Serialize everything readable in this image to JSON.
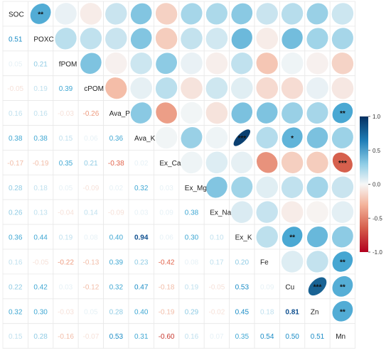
{
  "chart_data": {
    "type": "heatmap",
    "variables": [
      "SOC",
      "POXC",
      "fPOM",
      "cPOM",
      "Ava_P",
      "Ava_K",
      "Ex_Ca",
      "Ex_Mg",
      "Ex_Na",
      "Ex_K",
      "Fe",
      "Cu",
      "Zn",
      "Mn"
    ],
    "lower_values": [
      [
        0.51
      ],
      [
        0.05,
        0.21
      ],
      [
        -0.05,
        0.19,
        0.39
      ],
      [
        0.16,
        0.16,
        -0.03,
        -0.26
      ],
      [
        0.38,
        0.38,
        0.15,
        0.06,
        0.36
      ],
      [
        -0.17,
        -0.19,
        0.35,
        0.21,
        -0.38,
        0.02
      ],
      [
        0.28,
        0.18,
        0.05,
        -0.09,
        0.02,
        0.32,
        0.03
      ],
      [
        0.26,
        0.13,
        -0.04,
        0.14,
        -0.09,
        0.03,
        0.09,
        0.38
      ],
      [
        0.36,
        0.44,
        0.19,
        0.08,
        0.4,
        0.94,
        0.06,
        0.3,
        0.1
      ],
      [
        0.16,
        -0.05,
        -0.22,
        -0.13,
        0.39,
        0.23,
        -0.42,
        0.08,
        0.17,
        0.2
      ],
      [
        0.22,
        0.42,
        0.03,
        -0.12,
        0.32,
        0.47,
        -0.18,
        0.19,
        -0.05,
        0.53,
        0.09
      ],
      [
        0.32,
        0.3,
        -0.03,
        0.05,
        0.28,
        0.4,
        -0.19,
        0.29,
        -0.02,
        0.45,
        0.18,
        0.81
      ],
      [
        0.15,
        0.28,
        -0.16,
        -0.07,
        0.53,
        0.31,
        -0.6,
        0.16,
        0.07,
        0.35,
        0.54,
        0.5,
        0.51
      ]
    ],
    "upper_cells": [
      {
        "row": "SOC",
        "col": "POXC",
        "r": 0.51,
        "sig": "**"
      },
      {
        "row": "SOC",
        "col": "fPOM",
        "r": 0.05,
        "sig": ""
      },
      {
        "row": "SOC",
        "col": "cPOM",
        "r": -0.05,
        "sig": ""
      },
      {
        "row": "SOC",
        "col": "Ava_P",
        "r": 0.16,
        "sig": ""
      },
      {
        "row": "SOC",
        "col": "Ava_K",
        "r": 0.38,
        "sig": ""
      },
      {
        "row": "SOC",
        "col": "Ex_Ca",
        "r": -0.17,
        "sig": ""
      },
      {
        "row": "SOC",
        "col": "Ex_Mg",
        "r": 0.28,
        "sig": ""
      },
      {
        "row": "SOC",
        "col": "Ex_Na",
        "r": 0.26,
        "sig": ""
      },
      {
        "row": "SOC",
        "col": "Ex_K",
        "r": 0.36,
        "sig": ""
      },
      {
        "row": "SOC",
        "col": "Fe",
        "r": 0.16,
        "sig": ""
      },
      {
        "row": "SOC",
        "col": "Cu",
        "r": 0.22,
        "sig": ""
      },
      {
        "row": "SOC",
        "col": "Zn",
        "r": 0.32,
        "sig": ""
      },
      {
        "row": "SOC",
        "col": "Mn",
        "r": 0.15,
        "sig": ""
      },
      {
        "row": "POXC",
        "col": "fPOM",
        "r": 0.21,
        "sig": ""
      },
      {
        "row": "POXC",
        "col": "cPOM",
        "r": 0.19,
        "sig": ""
      },
      {
        "row": "POXC",
        "col": "Ava_P",
        "r": 0.16,
        "sig": ""
      },
      {
        "row": "POXC",
        "col": "Ava_K",
        "r": 0.38,
        "sig": ""
      },
      {
        "row": "POXC",
        "col": "Ex_Ca",
        "r": -0.19,
        "sig": ""
      },
      {
        "row": "POXC",
        "col": "Ex_Mg",
        "r": 0.18,
        "sig": ""
      },
      {
        "row": "POXC",
        "col": "Ex_Na",
        "r": 0.13,
        "sig": ""
      },
      {
        "row": "POXC",
        "col": "Ex_K",
        "r": 0.44,
        "sig": ""
      },
      {
        "row": "POXC",
        "col": "Fe",
        "r": -0.05,
        "sig": ""
      },
      {
        "row": "POXC",
        "col": "Cu",
        "r": 0.42,
        "sig": ""
      },
      {
        "row": "POXC",
        "col": "Zn",
        "r": 0.3,
        "sig": ""
      },
      {
        "row": "POXC",
        "col": "Mn",
        "r": 0.28,
        "sig": ""
      },
      {
        "row": "fPOM",
        "col": "cPOM",
        "r": 0.39,
        "sig": ""
      },
      {
        "row": "fPOM",
        "col": "Ava_P",
        "r": -0.03,
        "sig": ""
      },
      {
        "row": "fPOM",
        "col": "Ava_K",
        "r": 0.15,
        "sig": ""
      },
      {
        "row": "fPOM",
        "col": "Ex_Ca",
        "r": 0.35,
        "sig": ""
      },
      {
        "row": "fPOM",
        "col": "Ex_Mg",
        "r": 0.05,
        "sig": ""
      },
      {
        "row": "fPOM",
        "col": "Ex_Na",
        "r": -0.04,
        "sig": ""
      },
      {
        "row": "fPOM",
        "col": "Ex_K",
        "r": 0.19,
        "sig": ""
      },
      {
        "row": "fPOM",
        "col": "Fe",
        "r": -0.22,
        "sig": ""
      },
      {
        "row": "fPOM",
        "col": "Cu",
        "r": 0.03,
        "sig": ""
      },
      {
        "row": "fPOM",
        "col": "Zn",
        "r": -0.03,
        "sig": ""
      },
      {
        "row": "fPOM",
        "col": "Mn",
        "r": -0.16,
        "sig": ""
      },
      {
        "row": "cPOM",
        "col": "Ava_P",
        "r": -0.26,
        "sig": ""
      },
      {
        "row": "cPOM",
        "col": "Ava_K",
        "r": 0.06,
        "sig": ""
      },
      {
        "row": "cPOM",
        "col": "Ex_Ca",
        "r": 0.21,
        "sig": ""
      },
      {
        "row": "cPOM",
        "col": "Ex_Mg",
        "r": -0.09,
        "sig": ""
      },
      {
        "row": "cPOM",
        "col": "Ex_Na",
        "r": 0.14,
        "sig": ""
      },
      {
        "row": "cPOM",
        "col": "Ex_K",
        "r": 0.08,
        "sig": ""
      },
      {
        "row": "cPOM",
        "col": "Fe",
        "r": -0.13,
        "sig": ""
      },
      {
        "row": "cPOM",
        "col": "Cu",
        "r": -0.12,
        "sig": ""
      },
      {
        "row": "cPOM",
        "col": "Zn",
        "r": 0.05,
        "sig": ""
      },
      {
        "row": "cPOM",
        "col": "Mn",
        "r": -0.07,
        "sig": ""
      },
      {
        "row": "Ava_P",
        "col": "Ava_K",
        "r": 0.36,
        "sig": ""
      },
      {
        "row": "Ava_P",
        "col": "Ex_Ca",
        "r": -0.38,
        "sig": ""
      },
      {
        "row": "Ava_P",
        "col": "Ex_Mg",
        "r": 0.02,
        "sig": ""
      },
      {
        "row": "Ava_P",
        "col": "Ex_Na",
        "r": -0.09,
        "sig": ""
      },
      {
        "row": "Ava_P",
        "col": "Ex_K",
        "r": 0.4,
        "sig": ""
      },
      {
        "row": "Ava_P",
        "col": "Fe",
        "r": 0.39,
        "sig": ""
      },
      {
        "row": "Ava_P",
        "col": "Cu",
        "r": 0.32,
        "sig": ""
      },
      {
        "row": "Ava_P",
        "col": "Zn",
        "r": 0.28,
        "sig": ""
      },
      {
        "row": "Ava_P",
        "col": "Mn",
        "r": 0.53,
        "sig": "**"
      },
      {
        "row": "Ava_K",
        "col": "Ex_Ca",
        "r": 0.02,
        "sig": ""
      },
      {
        "row": "Ava_K",
        "col": "Ex_Mg",
        "r": 0.32,
        "sig": ""
      },
      {
        "row": "Ava_K",
        "col": "Ex_Na",
        "r": 0.03,
        "sig": ""
      },
      {
        "row": "Ava_K",
        "col": "Ex_K",
        "r": 0.94,
        "sig": "***"
      },
      {
        "row": "Ava_K",
        "col": "Fe",
        "r": 0.23,
        "sig": ""
      },
      {
        "row": "Ava_K",
        "col": "Cu",
        "r": 0.47,
        "sig": "*"
      },
      {
        "row": "Ava_K",
        "col": "Zn",
        "r": 0.4,
        "sig": ""
      },
      {
        "row": "Ava_K",
        "col": "Mn",
        "r": 0.31,
        "sig": ""
      },
      {
        "row": "Ex_Ca",
        "col": "Ex_Mg",
        "r": 0.03,
        "sig": ""
      },
      {
        "row": "Ex_Ca",
        "col": "Ex_Na",
        "r": 0.09,
        "sig": ""
      },
      {
        "row": "Ex_Ca",
        "col": "Ex_K",
        "r": 0.06,
        "sig": ""
      },
      {
        "row": "Ex_Ca",
        "col": "Fe",
        "r": -0.42,
        "sig": ""
      },
      {
        "row": "Ex_Ca",
        "col": "Cu",
        "r": -0.18,
        "sig": ""
      },
      {
        "row": "Ex_Ca",
        "col": "Zn",
        "r": -0.19,
        "sig": ""
      },
      {
        "row": "Ex_Ca",
        "col": "Mn",
        "r": -0.6,
        "sig": "***"
      },
      {
        "row": "Ex_Mg",
        "col": "Ex_Na",
        "r": 0.38,
        "sig": ""
      },
      {
        "row": "Ex_Mg",
        "col": "Ex_K",
        "r": 0.3,
        "sig": ""
      },
      {
        "row": "Ex_Mg",
        "col": "Fe",
        "r": 0.08,
        "sig": ""
      },
      {
        "row": "Ex_Mg",
        "col": "Cu",
        "r": 0.19,
        "sig": ""
      },
      {
        "row": "Ex_Mg",
        "col": "Zn",
        "r": 0.29,
        "sig": ""
      },
      {
        "row": "Ex_Mg",
        "col": "Mn",
        "r": 0.16,
        "sig": ""
      },
      {
        "row": "Ex_Na",
        "col": "Ex_K",
        "r": 0.1,
        "sig": ""
      },
      {
        "row": "Ex_Na",
        "col": "Fe",
        "r": 0.17,
        "sig": ""
      },
      {
        "row": "Ex_Na",
        "col": "Cu",
        "r": -0.05,
        "sig": ""
      },
      {
        "row": "Ex_Na",
        "col": "Zn",
        "r": -0.02,
        "sig": ""
      },
      {
        "row": "Ex_Na",
        "col": "Mn",
        "r": 0.07,
        "sig": ""
      },
      {
        "row": "Ex_K",
        "col": "Fe",
        "r": 0.2,
        "sig": ""
      },
      {
        "row": "Ex_K",
        "col": "Cu",
        "r": 0.53,
        "sig": "**"
      },
      {
        "row": "Ex_K",
        "col": "Zn",
        "r": 0.45,
        "sig": ""
      },
      {
        "row": "Ex_K",
        "col": "Mn",
        "r": 0.35,
        "sig": ""
      },
      {
        "row": "Fe",
        "col": "Cu",
        "r": 0.09,
        "sig": ""
      },
      {
        "row": "Fe",
        "col": "Zn",
        "r": 0.18,
        "sig": ""
      },
      {
        "row": "Fe",
        "col": "Mn",
        "r": 0.54,
        "sig": "**"
      },
      {
        "row": "Cu",
        "col": "Zn",
        "r": 0.81,
        "sig": "***"
      },
      {
        "row": "Cu",
        "col": "Mn",
        "r": 0.5,
        "sig": "**"
      },
      {
        "row": "Zn",
        "col": "Mn",
        "r": 0.51,
        "sig": "**"
      }
    ],
    "colorbar": {
      "range": [
        -1.0,
        1.0
      ],
      "ticks": [
        "1.0",
        "0.5",
        "0.0",
        "-0.5",
        "-1.0"
      ],
      "tick_values": [
        1.0,
        0.5,
        0.0,
        -0.5,
        -1.0
      ]
    },
    "palette": {
      "negative_strong": "#b2182b",
      "negative_mid": "#e7786a",
      "neutral": "#f7f7f7",
      "positive_mid": "#52b3d8",
      "positive_strong": "#1a5fa0",
      "grid": "#e8e8e8",
      "diag_text": "#222222"
    }
  }
}
